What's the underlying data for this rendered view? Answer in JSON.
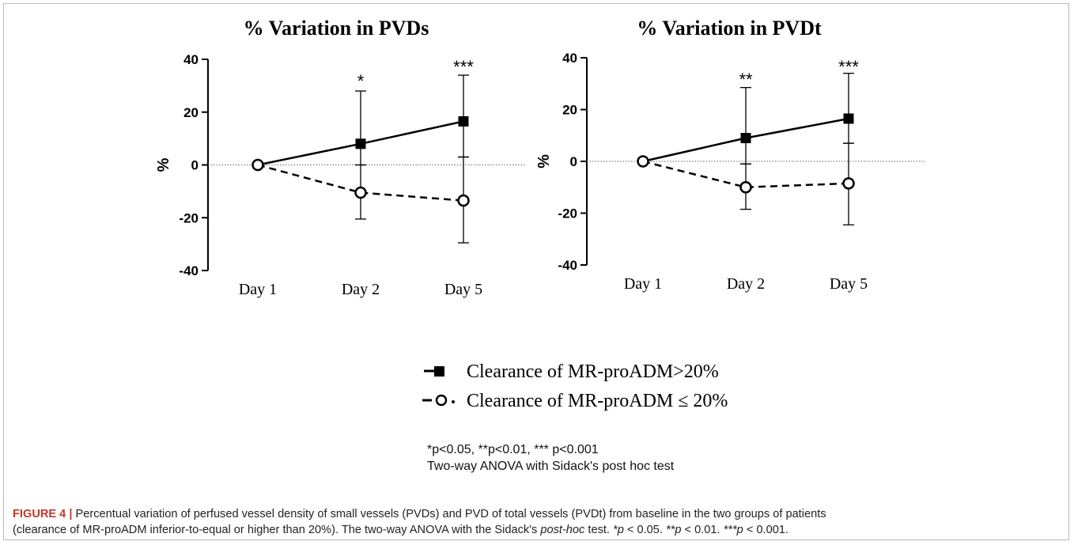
{
  "chart_data": [
    {
      "type": "line",
      "title": "% Variation in PVDs",
      "ylabel": "%",
      "xlabel": "",
      "ylim": [
        -40,
        40
      ],
      "yticks": [
        40,
        20,
        0,
        -20,
        -40
      ],
      "categories": [
        "Day 1",
        "Day 2",
        "Day 5"
      ],
      "grid": false,
      "zero_line": true,
      "significance": [
        "",
        "*",
        "***"
      ],
      "series": [
        {
          "name": "Clearance of MR-proADM>20%",
          "marker": "filled-square",
          "line": "solid",
          "values": [
            0,
            8,
            16.5
          ],
          "err_low": [
            0,
            0,
            3
          ],
          "err_high": [
            0,
            28,
            34
          ]
        },
        {
          "name": "Clearance of MR-proADM ≤ 20%",
          "marker": "open-circle",
          "line": "dashed",
          "values": [
            0,
            -10.5,
            -13.5
          ],
          "err_low": [
            0,
            -20.5,
            -29.5
          ],
          "err_high": [
            0,
            0,
            3
          ]
        }
      ]
    },
    {
      "type": "line",
      "title": "% Variation in PVDt",
      "ylabel": "%",
      "xlabel": "",
      "ylim": [
        -40,
        40
      ],
      "yticks": [
        40,
        20,
        0,
        -20,
        -40
      ],
      "categories": [
        "Day 1",
        "Day 2",
        "Day 5"
      ],
      "grid": false,
      "zero_line": true,
      "significance": [
        "",
        "**",
        "***"
      ],
      "series": [
        {
          "name": "Clearance of MR-proADM>20%",
          "marker": "filled-square",
          "line": "solid",
          "values": [
            0,
            9,
            16.5
          ],
          "err_low": [
            0,
            -1,
            7
          ],
          "err_high": [
            0,
            28.5,
            34
          ]
        },
        {
          "name": "Clearance of MR-proADM ≤ 20%",
          "marker": "open-circle",
          "line": "dashed",
          "values": [
            0,
            -10,
            -8.5
          ],
          "err_low": [
            0,
            -18.5,
            -24.5
          ],
          "err_high": [
            0,
            -1,
            7
          ]
        }
      ]
    }
  ],
  "legend": {
    "items": [
      {
        "label": "Clearance of MR-proADM>20%"
      },
      {
        "label": "Clearance of MR-proADM ≤ 20%"
      }
    ]
  },
  "notes": {
    "line1": "*p<0.05, **p<0.01, *** p<0.001",
    "line2": "Two-way ANOVA with Sidack's post hoc test"
  },
  "caption": {
    "label": "FIGURE 4",
    "separator": "|",
    "text1": "Percentual variation of perfused vessel density of small vessels (PVDs) and PVD of total vessels (PVDt) from baseline in the two groups of patients",
    "text2a": "(clearance of MR-proADM inferior-to-equal or higher than 20%). The two-way ANOVA with the Sidack's ",
    "text2_italic": "post-hoc",
    "text2b": " test. ",
    "p1": "*p",
    "p1v": " < 0.05. ",
    "p2": "**p",
    "p2v": " < 0.01. ",
    "p3": "***p",
    "p3v": " < 0.001."
  }
}
